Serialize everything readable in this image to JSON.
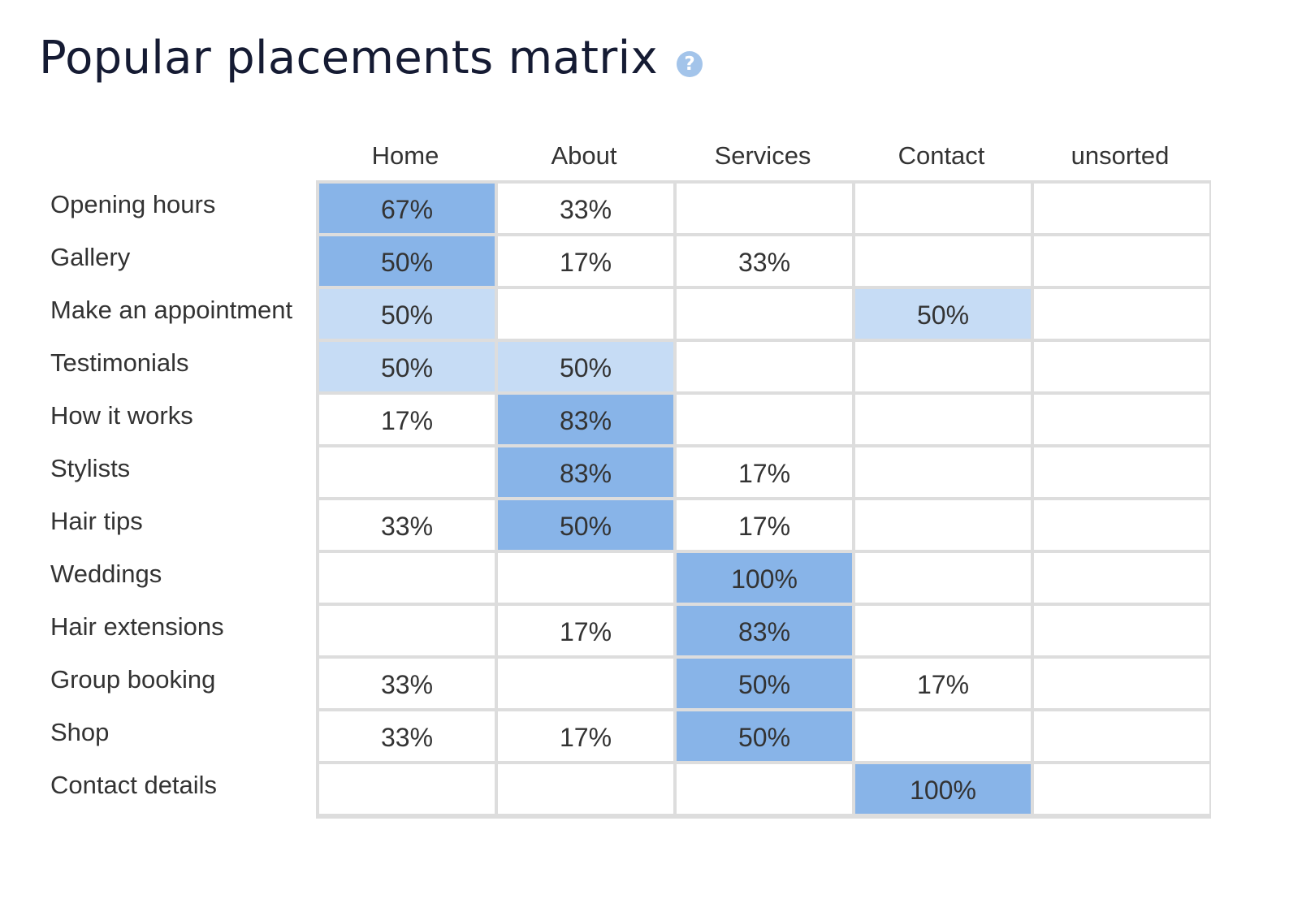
{
  "title": "Popular placements matrix",
  "help_icon": "?",
  "colors": {
    "high": "#88b4e8",
    "medium": "#c6dcf5",
    "empty": "#ffffff",
    "grid": "#dddddd"
  },
  "chart_data": {
    "type": "heatmap",
    "title": "Popular placements matrix",
    "x": [
      "Home",
      "About",
      "Services",
      "Contact",
      "unsorted"
    ],
    "y": [
      "Opening hours",
      "Gallery",
      "Make an appointment",
      "Testimonials",
      "How it works",
      "Stylists",
      "Hair tips",
      "Weddings",
      "Hair extensions",
      "Group booking",
      "Shop",
      "Contact details"
    ],
    "values": [
      [
        67,
        33,
        null,
        null,
        null
      ],
      [
        50,
        17,
        33,
        null,
        null
      ],
      [
        50,
        null,
        null,
        50,
        null
      ],
      [
        50,
        50,
        null,
        null,
        null
      ],
      [
        17,
        83,
        null,
        null,
        null
      ],
      [
        null,
        83,
        17,
        null,
        null
      ],
      [
        33,
        50,
        17,
        null,
        null
      ],
      [
        null,
        null,
        100,
        null,
        null
      ],
      [
        null,
        17,
        83,
        null,
        null
      ],
      [
        33,
        null,
        50,
        17,
        null
      ],
      [
        33,
        17,
        50,
        null,
        null
      ],
      [
        null,
        null,
        null,
        100,
        null
      ]
    ],
    "labels": [
      [
        "67%",
        "33%",
        "",
        "",
        ""
      ],
      [
        "50%",
        "17%",
        "33%",
        "",
        ""
      ],
      [
        "50%",
        "",
        "",
        "50%",
        ""
      ],
      [
        "50%",
        "50%",
        "",
        "",
        ""
      ],
      [
        "17%",
        "83%",
        "",
        "",
        ""
      ],
      [
        "",
        "83%",
        "17%",
        "",
        ""
      ],
      [
        "33%",
        "50%",
        "17%",
        "",
        ""
      ],
      [
        "",
        "",
        "100%",
        "",
        ""
      ],
      [
        "",
        "17%",
        "83%",
        "",
        ""
      ],
      [
        "33%",
        "",
        "50%",
        "17%",
        ""
      ],
      [
        "33%",
        "17%",
        "50%",
        "",
        ""
      ],
      [
        "",
        "",
        "",
        "100%",
        ""
      ]
    ],
    "shading": [
      [
        "high",
        "none",
        "none",
        "none",
        "none"
      ],
      [
        "high",
        "none",
        "none",
        "none",
        "none"
      ],
      [
        "medium",
        "none",
        "none",
        "medium",
        "none"
      ],
      [
        "medium",
        "medium",
        "none",
        "none",
        "none"
      ],
      [
        "none",
        "high",
        "none",
        "none",
        "none"
      ],
      [
        "none",
        "high",
        "none",
        "none",
        "none"
      ],
      [
        "none",
        "high",
        "none",
        "none",
        "none"
      ],
      [
        "none",
        "none",
        "high",
        "none",
        "none"
      ],
      [
        "none",
        "none",
        "high",
        "none",
        "none"
      ],
      [
        "none",
        "none",
        "high",
        "none",
        "none"
      ],
      [
        "none",
        "none",
        "high",
        "none",
        "none"
      ],
      [
        "none",
        "none",
        "none",
        "high",
        "none"
      ]
    ]
  }
}
